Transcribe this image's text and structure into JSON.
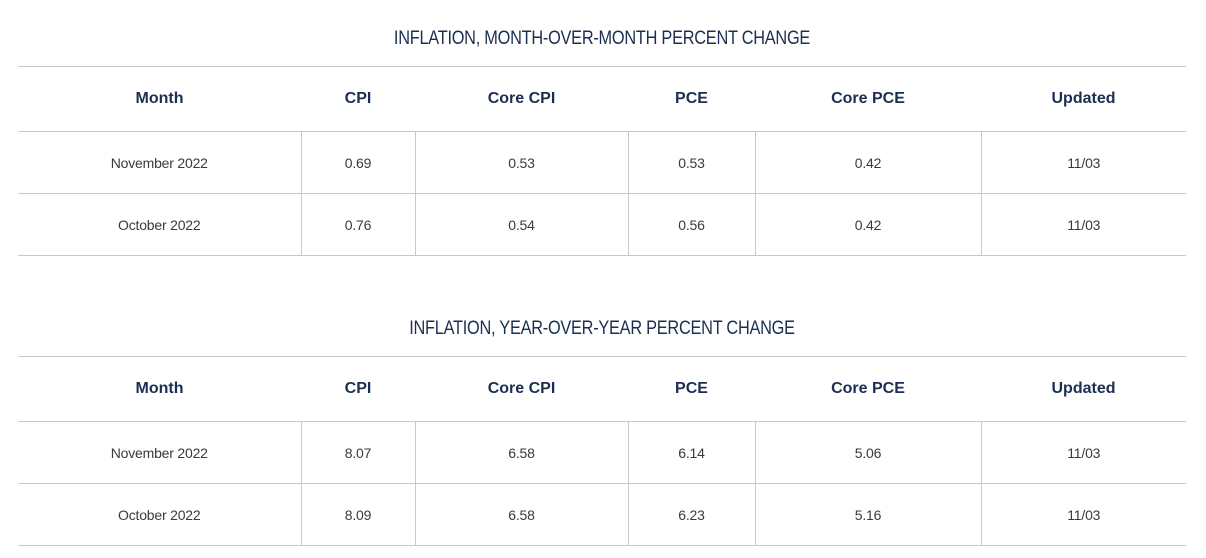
{
  "mom": {
    "title": "INFLATION, MONTH-OVER-MONTH PERCENT CHANGE",
    "headers": [
      "Month",
      "CPI",
      "Core CPI",
      "PCE",
      "Core PCE",
      "Updated"
    ],
    "rows": [
      [
        "November 2022",
        "0.69",
        "0.53",
        "0.53",
        "0.42",
        "11/03"
      ],
      [
        "October 2022",
        "0.76",
        "0.54",
        "0.56",
        "0.42",
        "11/03"
      ]
    ]
  },
  "yoy": {
    "title": "INFLATION, YEAR-OVER-YEAR PERCENT CHANGE",
    "headers": [
      "Month",
      "CPI",
      "Core CPI",
      "PCE",
      "Core PCE",
      "Updated"
    ],
    "rows": [
      [
        "November 2022",
        "8.07",
        "6.58",
        "6.14",
        "5.06",
        "11/03"
      ],
      [
        "October 2022",
        "8.09",
        "6.58",
        "6.23",
        "5.16",
        "11/03"
      ]
    ]
  },
  "colors": {
    "heading": "#1b2f52",
    "text": "#3a3a3a",
    "border": "#c8c8c8"
  }
}
